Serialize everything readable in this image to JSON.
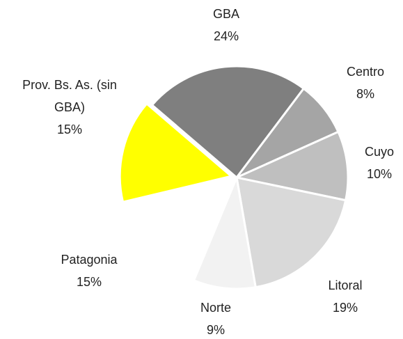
{
  "chart_data": {
    "type": "pie",
    "categories": [
      "GBA",
      "Centro",
      "Cuyo",
      "Litoral",
      "Norte",
      "Patagonia",
      "Prov. Bs. As. (sin GBA)"
    ],
    "values": [
      24,
      8,
      10,
      19,
      9,
      15,
      15
    ],
    "value_labels": [
      "24%",
      "8%",
      "10%",
      "19%",
      "9%",
      "15%",
      "15%"
    ],
    "colors": [
      "#7f7f7f",
      "#a5a5a5",
      "#bfbfbf",
      "#d9d9d9",
      "#f2f2f2",
      "#ffffff",
      "#ffff00"
    ],
    "exploded": [
      6
    ]
  }
}
